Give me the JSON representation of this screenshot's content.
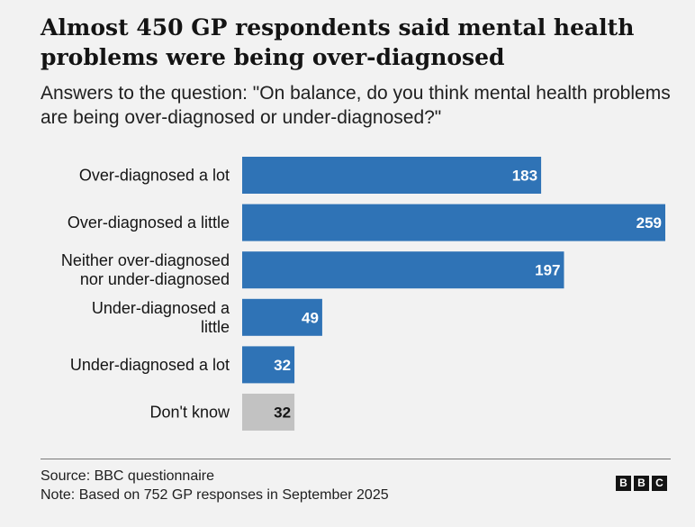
{
  "header": {
    "title": "Almost 450 GP respondents said mental health problems were being over-diagnosed",
    "subtitle": "Answers to the question: \"On balance, do you think mental health problems are being over-diagnosed or under-diagnosed?\""
  },
  "chart_data": {
    "type": "bar",
    "orientation": "horizontal",
    "categories": [
      [
        "Over-diagnosed a lot"
      ],
      [
        "Over-diagnosed a little"
      ],
      [
        "Neither over-diagnosed",
        "nor under-diagnosed"
      ],
      [
        "Under-diagnosed a",
        "little"
      ],
      [
        "Under-diagnosed a lot"
      ],
      [
        "Don't know"
      ]
    ],
    "values": [
      183,
      259,
      197,
      49,
      32,
      32
    ],
    "xlim": [
      0,
      259
    ],
    "bar_colors": [
      "#2f73b6",
      "#2f73b6",
      "#2f73b6",
      "#2f73b6",
      "#2f73b6",
      "#c2c2c2"
    ],
    "value_label_colors": [
      "#ffffff",
      "#ffffff",
      "#ffffff",
      "#ffffff",
      "#ffffff",
      "#141414"
    ],
    "grid": false,
    "legend": "none"
  },
  "footer": {
    "source": "Source: BBC questionnaire",
    "note": "Note: Based on 752 GP responses in September 2025",
    "logo_letters": [
      "B",
      "B",
      "C"
    ]
  }
}
